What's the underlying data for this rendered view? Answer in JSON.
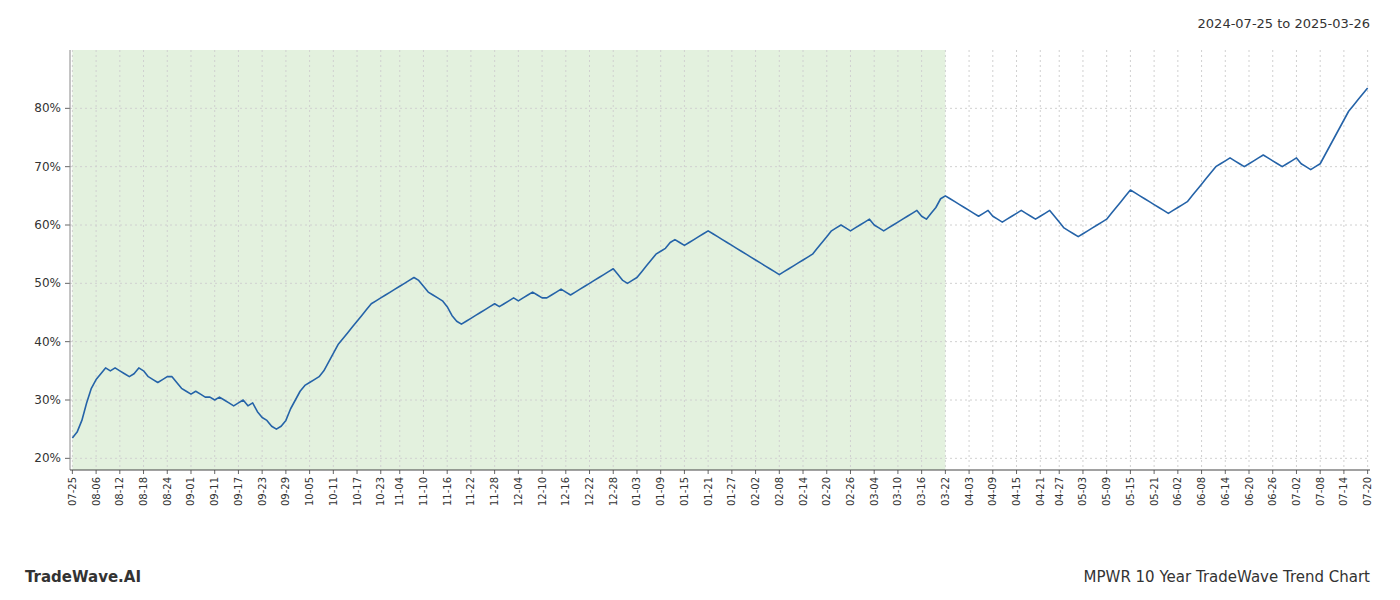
{
  "chart_data": {
    "type": "line",
    "title": "MPWR 10 Year TradeWave Trend Chart",
    "subtitle": "2024-07-25 to 2025-03-26",
    "annotation": "TradeWave.AI",
    "color": "#2563a8",
    "grid": true,
    "ylim": [
      18,
      90
    ],
    "yticks": [
      {
        "value": 20,
        "label": "20%"
      },
      {
        "value": 30,
        "label": "30%"
      },
      {
        "value": 40,
        "label": "40%"
      },
      {
        "value": 50,
        "label": "50%"
      },
      {
        "value": 60,
        "label": "60%"
      },
      {
        "value": 70,
        "label": "70%"
      },
      {
        "value": 80,
        "label": "80%"
      }
    ],
    "shaded_region": {
      "start": "07-25",
      "end": "03-22",
      "color": "#d4eacc"
    },
    "categories": [
      "07-25",
      null,
      null,
      null,
      null,
      "08-06",
      null,
      null,
      null,
      null,
      "08-12",
      null,
      null,
      null,
      null,
      "08-18",
      null,
      null,
      null,
      null,
      "08-24",
      null,
      null,
      null,
      null,
      "09-01",
      null,
      null,
      null,
      null,
      "09-11",
      null,
      null,
      null,
      null,
      "09-17",
      null,
      null,
      null,
      null,
      "09-23",
      null,
      null,
      null,
      null,
      "09-29",
      null,
      null,
      null,
      null,
      "10-05",
      null,
      null,
      null,
      null,
      "10-11",
      null,
      null,
      null,
      null,
      "10-17",
      null,
      null,
      null,
      null,
      "10-23",
      null,
      null,
      null,
      "11-04",
      null,
      null,
      null,
      null,
      "11-10",
      null,
      null,
      null,
      null,
      "11-16",
      null,
      null,
      null,
      null,
      "11-22",
      null,
      null,
      null,
      null,
      "11-28",
      null,
      null,
      null,
      null,
      "12-04",
      null,
      null,
      null,
      null,
      "12-10",
      null,
      null,
      null,
      null,
      "12-16",
      null,
      null,
      null,
      null,
      "12-22",
      null,
      null,
      null,
      null,
      "12-28",
      null,
      null,
      null,
      null,
      "01-03",
      null,
      null,
      null,
      null,
      "01-09",
      null,
      null,
      null,
      null,
      "01-15",
      null,
      null,
      null,
      null,
      "01-21",
      null,
      null,
      null,
      null,
      "01-27",
      null,
      null,
      null,
      null,
      "02-02",
      null,
      null,
      null,
      null,
      "02-08",
      null,
      null,
      null,
      null,
      "02-14",
      null,
      null,
      null,
      null,
      "02-20",
      null,
      null,
      null,
      null,
      "02-26",
      null,
      null,
      null,
      null,
      "03-04",
      null,
      null,
      null,
      null,
      "03-10",
      null,
      null,
      null,
      null,
      "03-16",
      null,
      null,
      null,
      null,
      "03-22",
      null,
      null,
      null,
      null,
      "04-03",
      null,
      null,
      null,
      null,
      "04-09",
      null,
      null,
      null,
      null,
      "04-15",
      null,
      null,
      null,
      null,
      "04-21",
      null,
      null,
      null,
      "04-27",
      null,
      null,
      null,
      null,
      "05-03",
      null,
      null,
      null,
      null,
      "05-09",
      null,
      null,
      null,
      null,
      "05-15",
      null,
      null,
      null,
      null,
      "05-21",
      null,
      null,
      null,
      null,
      "06-02",
      null,
      null,
      null,
      null,
      "06-08",
      null,
      null,
      null,
      null,
      "06-14",
      null,
      null,
      null,
      null,
      "06-20",
      null,
      null,
      null,
      null,
      "06-26",
      null,
      null,
      null,
      null,
      "07-02",
      null,
      null,
      null,
      null,
      "07-08",
      null,
      null,
      null,
      null,
      "07-14",
      null,
      null,
      null,
      null,
      "07-20"
    ],
    "values": [
      23.5,
      24.5,
      26.5,
      29.5,
      32.0,
      33.5,
      34.5,
      35.5,
      35.0,
      35.5,
      35.0,
      34.5,
      34.0,
      34.5,
      35.5,
      35.0,
      34.0,
      33.5,
      33.0,
      33.5,
      34.0,
      34.0,
      33.0,
      32.0,
      31.5,
      31.0,
      31.5,
      31.0,
      30.5,
      30.5,
      30.0,
      30.5,
      30.0,
      29.5,
      29.0,
      29.5,
      30.0,
      29.0,
      29.5,
      28.0,
      27.0,
      26.5,
      25.5,
      25.0,
      25.5,
      26.5,
      28.5,
      30.0,
      31.5,
      32.5,
      33.0,
      33.5,
      34.0,
      35.0,
      36.5,
      38.0,
      39.5,
      40.5,
      41.5,
      42.5,
      43.5,
      44.5,
      45.5,
      46.5,
      47.0,
      47.5,
      48.0,
      48.5,
      49.0,
      49.5,
      50.0,
      50.5,
      51.0,
      50.5,
      49.5,
      48.5,
      48.0,
      47.5,
      47.0,
      46.0,
      44.5,
      43.5,
      43.0,
      43.5,
      44.0,
      44.5,
      45.0,
      45.5,
      46.0,
      46.5,
      46.0,
      46.5,
      47.0,
      47.5,
      47.0,
      47.5,
      48.0,
      48.5,
      48.0,
      47.5,
      47.5,
      48.0,
      48.5,
      49.0,
      48.5,
      48.0,
      48.5,
      49.0,
      49.5,
      50.0,
      50.5,
      51.0,
      51.5,
      52.0,
      52.5,
      51.5,
      50.5,
      50.0,
      50.5,
      51.0,
      52.0,
      53.0,
      54.0,
      55.0,
      55.5,
      56.0,
      57.0,
      57.5,
      57.0,
      56.5,
      57.0,
      57.5,
      58.0,
      58.5,
      59.0,
      58.5,
      58.0,
      57.5,
      57.0,
      56.5,
      56.0,
      55.5,
      55.0,
      54.5,
      54.0,
      53.5,
      53.0,
      52.5,
      52.0,
      51.5,
      52.0,
      52.5,
      53.0,
      53.5,
      54.0,
      54.5,
      55.0,
      56.0,
      57.0,
      58.0,
      59.0,
      59.5,
      60.0,
      59.5,
      59.0,
      59.5,
      60.0,
      60.5,
      61.0,
      60.0,
      59.5,
      59.0,
      59.5,
      60.0,
      60.5,
      61.0,
      61.5,
      62.0,
      62.5,
      61.5,
      61.0,
      62.0,
      63.0,
      64.5,
      65.0,
      64.5,
      64.0,
      63.5,
      63.0,
      62.5,
      62.0,
      61.5,
      62.0,
      62.5,
      61.5,
      61.0,
      60.5,
      61.0,
      61.5,
      62.0,
      62.5,
      62.0,
      61.5,
      61.0,
      61.5,
      62.0,
      62.5,
      61.5,
      60.5,
      59.5,
      59.0,
      58.5,
      58.0,
      58.5,
      59.0,
      59.5,
      60.0,
      60.5,
      61.0,
      62.0,
      63.0,
      64.0,
      65.0,
      66.0,
      65.5,
      65.0,
      64.5,
      64.0,
      63.5,
      63.0,
      62.5,
      62.0,
      62.5,
      63.0,
      63.5,
      64.0,
      65.0,
      66.0,
      67.0,
      68.0,
      69.0,
      70.0,
      70.5,
      71.0,
      71.5,
      71.0,
      70.5,
      70.0,
      70.5,
      71.0,
      71.5,
      72.0,
      71.5,
      71.0,
      70.5,
      70.0,
      70.5,
      71.0,
      71.5,
      70.5,
      70.0,
      69.5,
      70.0,
      70.5,
      72.0,
      73.5,
      75.0,
      76.5,
      78.0,
      79.5,
      80.5,
      81.5,
      82.5,
      83.5
    ]
  }
}
